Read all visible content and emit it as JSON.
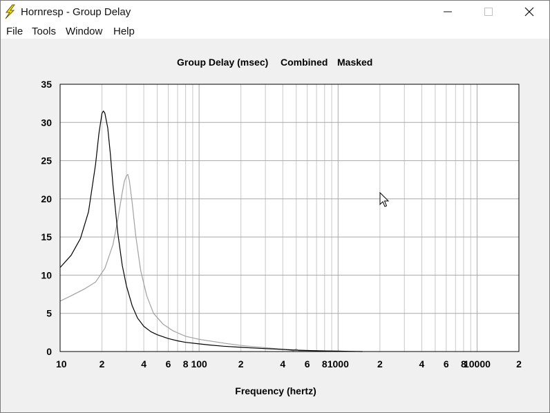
{
  "window": {
    "title": "Hornresp - Group Delay"
  },
  "menu": {
    "items": [
      "File",
      "Tools",
      "Window",
      "Help"
    ]
  },
  "colors": {
    "client_bg": "#f0f0f0",
    "plot_bg": "#ffffff",
    "grid": "#c8c8c8",
    "grid_major": "#a8a8a8",
    "series_combined": "#000000",
    "series_masked": "#a0a0a0",
    "icon_bolt": "#f5e000"
  },
  "chart_data": {
    "type": "line",
    "title_parts": [
      "Group Delay (msec)",
      "Combined",
      "Masked"
    ],
    "xlabel": "Frequency (hertz)",
    "ylabel": "",
    "x_scale": "log",
    "xlim": [
      10,
      20000
    ],
    "ylim": [
      0,
      35
    ],
    "y_ticks": [
      0,
      5,
      10,
      15,
      20,
      25,
      30,
      35
    ],
    "x_tick_labels": [
      {
        "x": 10,
        "label": "10"
      },
      {
        "x": 20,
        "label": "2"
      },
      {
        "x": 40,
        "label": "4"
      },
      {
        "x": 60,
        "label": "6"
      },
      {
        "x": 80,
        "label": "8"
      },
      {
        "x": 100,
        "label": "100"
      },
      {
        "x": 200,
        "label": "2"
      },
      {
        "x": 400,
        "label": "4"
      },
      {
        "x": 600,
        "label": "6"
      },
      {
        "x": 800,
        "label": "8"
      },
      {
        "x": 1000,
        "label": "1000"
      },
      {
        "x": 2000,
        "label": "2"
      },
      {
        "x": 4000,
        "label": "4"
      },
      {
        "x": 6000,
        "label": "6"
      },
      {
        "x": 8000,
        "label": "8"
      },
      {
        "x": 10000,
        "label": "10000"
      },
      {
        "x": 20000,
        "label": "2"
      }
    ],
    "grid": true,
    "legend": "none",
    "series": [
      {
        "name": "Combined",
        "x": [
          10,
          12,
          14,
          16,
          18,
          19,
          20,
          20.5,
          21,
          22,
          23,
          24,
          26,
          28,
          30,
          33,
          36,
          40,
          45,
          50,
          60,
          70,
          80,
          100,
          120,
          150,
          200,
          300,
          400,
          500,
          600,
          800,
          1000,
          1200,
          1500
        ],
        "y": [
          11.0,
          12.6,
          14.8,
          18.3,
          24.5,
          28.5,
          31.2,
          31.5,
          31.2,
          29.3,
          25.8,
          21.8,
          15.5,
          11.3,
          8.6,
          6.0,
          4.4,
          3.3,
          2.6,
          2.2,
          1.7,
          1.4,
          1.2,
          1.0,
          0.85,
          0.7,
          0.55,
          0.38,
          0.28,
          0.18,
          0.14,
          0.08,
          0.05,
          0.03,
          0.0
        ]
      },
      {
        "name": "Masked",
        "x": [
          10,
          12,
          15,
          18,
          21,
          24,
          26,
          28,
          29,
          30,
          30.7,
          31.5,
          33,
          35,
          38,
          42,
          47,
          55,
          65,
          80,
          100,
          150,
          200,
          300,
          400,
          480,
          500,
          520,
          600,
          800,
          1000
        ],
        "y": [
          6.6,
          7.3,
          8.2,
          9.1,
          10.9,
          14.0,
          17.3,
          20.8,
          22.3,
          23.0,
          23.2,
          22.4,
          19.5,
          15.2,
          10.6,
          7.3,
          5.0,
          3.6,
          2.7,
          2.0,
          1.6,
          1.1,
          0.8,
          0.5,
          0.3,
          0.1,
          0.35,
          0.1,
          0.08,
          0.04,
          0.0
        ]
      }
    ]
  }
}
